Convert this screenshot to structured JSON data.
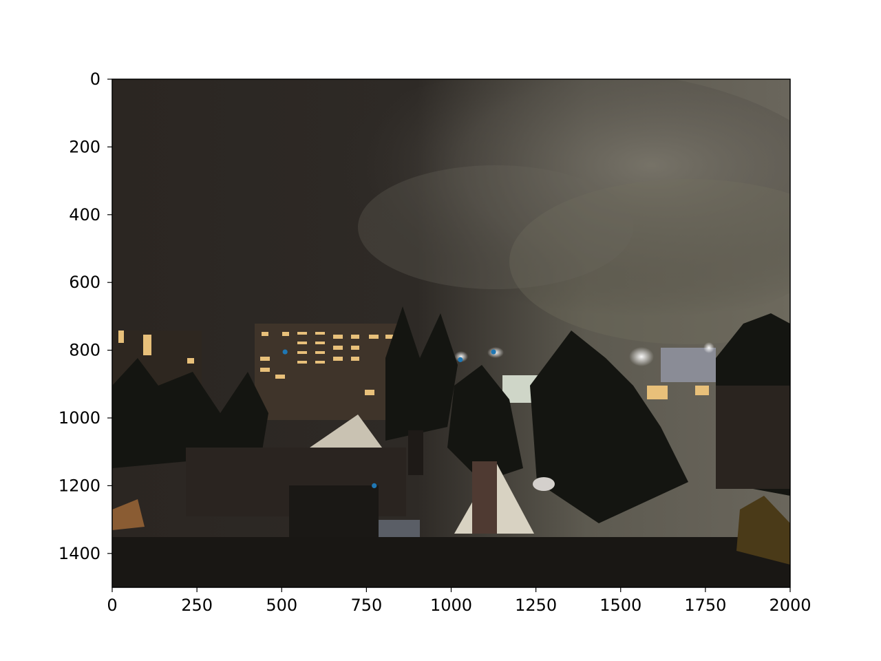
{
  "chart_data": {
    "type": "scatter",
    "title": "",
    "xlabel": "",
    "ylabel": "",
    "xlim": [
      0,
      2000
    ],
    "ylim": [
      1500,
      0
    ],
    "y_inverted": true,
    "grid": false,
    "background": "image",
    "background_description_hidden": true,
    "x_ticks": [
      0,
      250,
      500,
      750,
      1000,
      1250,
      1500,
      1750,
      2000
    ],
    "y_ticks": [
      0,
      200,
      400,
      600,
      800,
      1000,
      1200,
      1400
    ],
    "x_tick_labels": [
      "0",
      "250",
      "500",
      "750",
      "1000",
      "1250",
      "1500",
      "1750",
      "2000"
    ],
    "y_tick_labels": [
      "0",
      "200",
      "400",
      "600",
      "800",
      "1000",
      "1200",
      "1400"
    ],
    "series": [
      {
        "color": "#1f77b4",
        "points": [
          {
            "x": 510,
            "y": 805
          },
          {
            "x": 1027,
            "y": 828
          },
          {
            "x": 1125,
            "y": 805
          },
          {
            "x": 773,
            "y": 1200
          }
        ]
      }
    ]
  }
}
